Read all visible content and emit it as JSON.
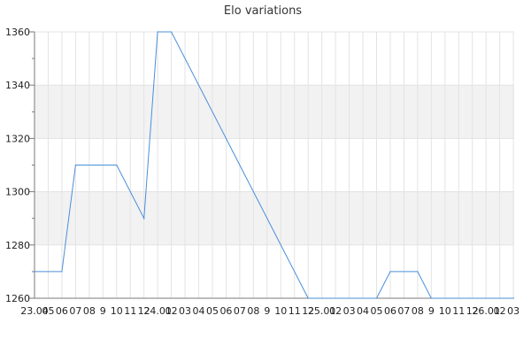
{
  "chart_data": {
    "type": "line",
    "title": "Elo variations",
    "xlabel": "",
    "ylabel": "",
    "ylim": [
      1260,
      1360
    ],
    "yticks": [
      1260,
      1280,
      1300,
      1320,
      1340,
      1360
    ],
    "grid": true,
    "legend": "none",
    "colors": {
      "line": "#4a8fd9",
      "band": "#f2f2f2",
      "grid": "#e3e3e3",
      "axis": "#7a7a7a"
    },
    "x_tick_labels": [
      "23.04",
      "05",
      "06",
      "07",
      "08",
      "9",
      "10",
      "11",
      "12",
      "24.01",
      "02",
      "03",
      "04",
      "05",
      "06",
      "07",
      "08",
      "9",
      "10",
      "11",
      "12",
      "25.01",
      "02",
      "03",
      "04",
      "05",
      "06",
      "07",
      "08",
      "9",
      "10",
      "11",
      "12",
      "26.01",
      "02",
      "03"
    ],
    "series": [
      {
        "points": [
          [
            0,
            1270
          ],
          [
            2,
            1270
          ],
          [
            3,
            1310
          ],
          [
            6,
            1310
          ],
          [
            8,
            1290
          ],
          [
            9,
            1360
          ],
          [
            10,
            1360
          ],
          [
            20,
            1260
          ],
          [
            25,
            1260
          ],
          [
            26,
            1270
          ],
          [
            28,
            1270
          ],
          [
            29,
            1260
          ],
          [
            35,
            1260
          ]
        ]
      }
    ]
  }
}
